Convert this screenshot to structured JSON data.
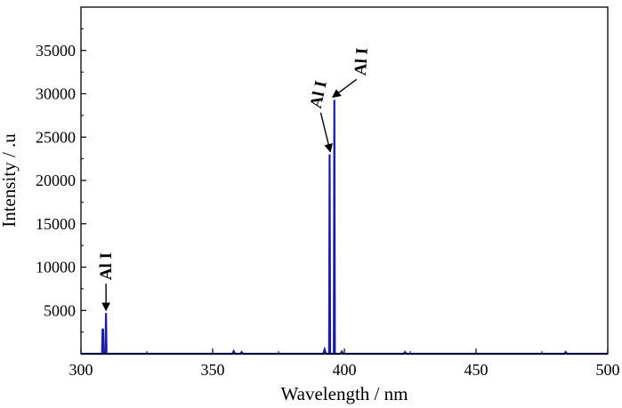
{
  "chart_data": {
    "type": "line",
    "title": "",
    "xlabel": "Wavelength / nm",
    "ylabel": "Intensity / .u",
    "xlim": [
      300,
      500
    ],
    "ylim": [
      0,
      40000
    ],
    "x_ticks": [
      300,
      350,
      400,
      450,
      500
    ],
    "y_ticks": [
      5000,
      10000,
      15000,
      20000,
      25000,
      30000,
      35000
    ],
    "grid": false,
    "legend": "none",
    "line_color": "#1f1f9c",
    "series": [
      {
        "x": [
          300,
          307.5,
          308.0,
          308.2,
          308.4,
          308.6,
          309.0,
          309.3,
          309.5,
          309.7,
          310.0,
          312,
          320,
          340,
          357.5,
          358.0,
          358.5,
          360.5,
          361.0,
          361.5,
          365,
          380,
          392.0,
          392.5,
          393.0,
          393.8,
          394.2,
          394.4,
          394.6,
          395.0,
          396.0,
          396.2,
          396.4,
          396.6,
          397.0,
          398.5,
          399.0,
          399.5,
          410,
          422.5,
          423.0,
          423.5,
          425.0,
          440,
          460,
          483.5,
          484.0,
          484.5,
          500
        ],
        "y": [
          0,
          0,
          0,
          2800,
          2800,
          0,
          0,
          0,
          4700,
          0,
          0,
          0,
          0,
          0,
          0,
          300,
          0,
          0,
          200,
          0,
          0,
          0,
          0,
          500,
          0,
          0,
          0,
          23000,
          0,
          0,
          0,
          29300,
          0,
          0,
          0,
          0,
          250,
          0,
          0,
          0,
          200,
          0,
          0,
          0,
          0,
          0,
          200,
          0,
          0
        ]
      }
    ],
    "annotations": [
      {
        "text": "Al I",
        "x": 309.5,
        "y": 4700
      },
      {
        "text": "Al I",
        "x": 394.4,
        "y": 23000
      },
      {
        "text": "Al I",
        "x": 396.2,
        "y": 29300
      }
    ]
  }
}
